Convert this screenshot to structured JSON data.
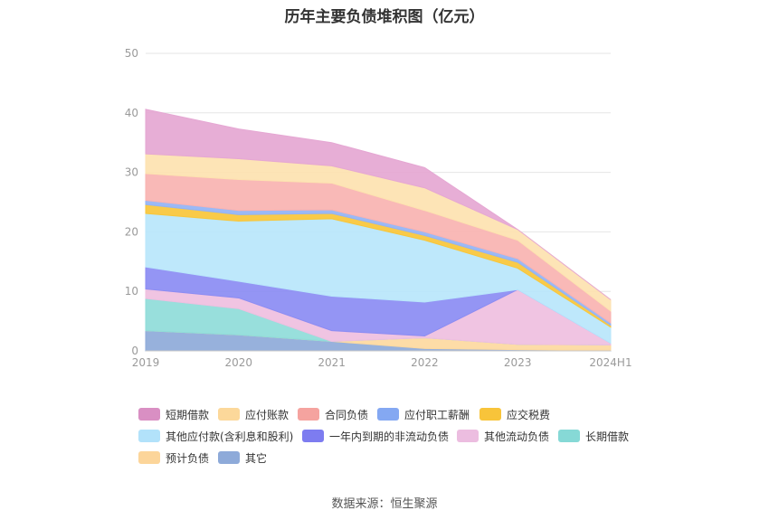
{
  "title": "历年主要负债堆积图（亿元）",
  "source": "数据来源：恒生聚源",
  "chart_data": {
    "type": "area",
    "stacked": true,
    "categories": [
      "2019",
      "2020",
      "2021",
      "2022",
      "2023",
      "2024H1"
    ],
    "ylim": [
      0,
      50
    ],
    "yticks": [
      "0",
      "10",
      "20",
      "30",
      "40",
      "50"
    ],
    "grid": true,
    "legend_position": "bottom",
    "series": [
      {
        "name": "其它",
        "color": "#8eaad9",
        "values": [
          3.4,
          2.7,
          1.6,
          0.4,
          0.2,
          0.1
        ]
      },
      {
        "name": "预计负债",
        "color": "#fdd9a0",
        "values": [
          0,
          0,
          0,
          1.8,
          0.9,
          0.9
        ]
      },
      {
        "name": "长期借款",
        "color": "#8fdcd9",
        "values": [
          5.4,
          4.4,
          0,
          0,
          0,
          0
        ]
      },
      {
        "name": "其他流动负债",
        "color": "#efbfe0",
        "values": [
          1.6,
          1.8,
          1.8,
          0.3,
          9.2,
          0.3
        ]
      },
      {
        "name": "一年内到期的非流动负债",
        "color": "#8b8cf3",
        "values": [
          3.7,
          2.8,
          5.8,
          5.7,
          0,
          0
        ]
      },
      {
        "name": "其他应付款(含利息和股利)",
        "color": "#b9e6fb",
        "values": [
          9.0,
          10.1,
          13.0,
          10.4,
          3.6,
          2.7
        ]
      },
      {
        "name": "应交税费",
        "color": "#f8c63a",
        "values": [
          1.5,
          1.1,
          0.9,
          0.8,
          1.0,
          0.3
        ]
      },
      {
        "name": "应付职工薪酬",
        "color": "#93b3f5",
        "values": [
          0.7,
          0.7,
          0.6,
          0.6,
          0.6,
          0.4
        ]
      },
      {
        "name": "合同负债",
        "color": "#f9b3b1",
        "values": [
          4.5,
          5.2,
          4.5,
          3.6,
          3.1,
          2.0
        ]
      },
      {
        "name": "应付账款",
        "color": "#fde2b0",
        "values": [
          3.3,
          3.5,
          2.9,
          3.8,
          1.8,
          1.9
        ]
      },
      {
        "name": "短期借款",
        "color": "#e5a7d3",
        "values": [
          7.5,
          5.0,
          3.9,
          3.4,
          0,
          0
        ]
      }
    ],
    "legend_order": [
      "短期借款",
      "应付账款",
      "合同负债",
      "应付职工薪酬",
      "应交税费",
      "其他应付款(含利息和股利)",
      "一年内到期的非流动负债",
      "其他流动负债",
      "长期借款",
      "预计负债",
      "其它"
    ],
    "legend_swatch_colors": {
      "短期借款": "#d98fc3",
      "应付账款": "#fcd89a",
      "合同负债": "#f5a39f",
      "应付职工薪酬": "#84a8f2",
      "应交税费": "#f8c43a",
      "其他应付款(含利息和股利)": "#b2e2fa",
      "一年内到期的非流动负债": "#7d7cf0",
      "其他流动负债": "#ecbde0",
      "长期借款": "#86d9d6",
      "预计负债": "#fcd59a",
      "其它": "#8eaad9"
    }
  }
}
